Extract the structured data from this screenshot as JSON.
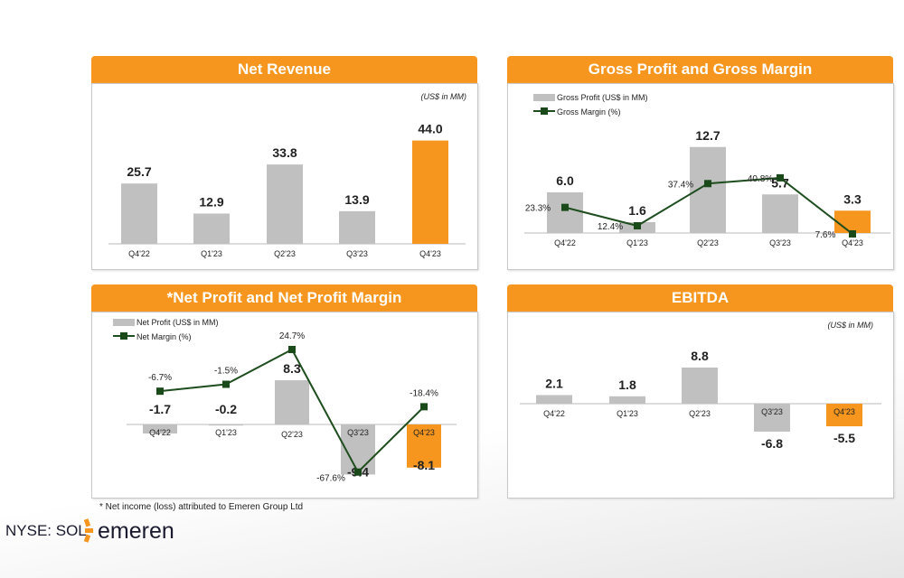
{
  "chart_data": [
    {
      "type": "bar",
      "title": "Net Revenue",
      "unit_note": "(US$ in MM)",
      "categories": [
        "Q4'22",
        "Q1'23",
        "Q2'23",
        "Q3'23",
        "Q4'23"
      ],
      "values": [
        25.7,
        12.9,
        33.8,
        13.9,
        44.0
      ],
      "labels": [
        "25.7",
        "12.9",
        "33.8",
        "13.9",
        "44.0"
      ],
      "highlight_index": 4
    },
    {
      "type": "bar",
      "title": "Gross Profit and Gross Margin",
      "legend": [
        "Gross Profit (US$ in MM)",
        "Gross Margin (%)"
      ],
      "legend_position": "top-left",
      "categories": [
        "Q4'22",
        "Q1'23",
        "Q2'23",
        "Q3'23",
        "Q4'23"
      ],
      "series": [
        {
          "name": "Gross Profit (US$ in MM)",
          "kind": "bar",
          "values": [
            6.0,
            1.6,
            12.7,
            5.7,
            3.3
          ],
          "labels": [
            "6.0",
            "1.6",
            "12.7",
            "5.7",
            "3.3"
          ]
        },
        {
          "name": "Gross Margin (%)",
          "kind": "line",
          "values": [
            23.3,
            12.4,
            37.4,
            40.8,
            7.6
          ],
          "labels": [
            "23.3%",
            "12.4%",
            "37.4%",
            "40.8%",
            "7.6%"
          ]
        }
      ],
      "highlight_index": 4
    },
    {
      "type": "bar",
      "title": "*Net Profit and Net Profit Margin",
      "legend": [
        "Net Profit (US$ in MM)",
        "Net Margin (%)"
      ],
      "legend_position": "top-left",
      "categories": [
        "Q4'22",
        "Q1'23",
        "Q2'23",
        "Q3'23",
        "Q4'23"
      ],
      "series": [
        {
          "name": "Net Profit (US$ in MM)",
          "kind": "bar",
          "values": [
            -1.7,
            -0.2,
            8.3,
            -9.4,
            -8.1
          ],
          "labels": [
            "-1.7",
            "-0.2",
            "8.3",
            "-9.4",
            "-8.1"
          ]
        },
        {
          "name": "Net Margin (%)",
          "kind": "line",
          "values": [
            -6.7,
            -1.5,
            24.7,
            -67.6,
            -18.4
          ],
          "labels": [
            "-6.7%",
            "-1.5%",
            "24.7%",
            "-67.6%",
            "-18.4%"
          ]
        }
      ],
      "highlight_index": 4
    },
    {
      "type": "bar",
      "title": "EBITDA",
      "unit_note": "(US$ in MM)",
      "categories": [
        "Q4'22",
        "Q1'23",
        "Q2'23",
        "Q3'23",
        "Q4'23"
      ],
      "values": [
        2.1,
        1.8,
        8.8,
        -6.8,
        -5.5
      ],
      "labels": [
        "2.1",
        "1.8",
        "8.8",
        "-6.8",
        "-5.5"
      ],
      "highlight_index": 4
    }
  ],
  "footnote": "* Net income (loss) attributed to Emeren Group Ltd",
  "ticker": "NYSE: SOL",
  "logo_text": "emeren",
  "colors": {
    "accent": "#f7961e",
    "bar": "#c0c0c0",
    "line": "#1e4d1e",
    "marker": "#1a4a1a"
  }
}
